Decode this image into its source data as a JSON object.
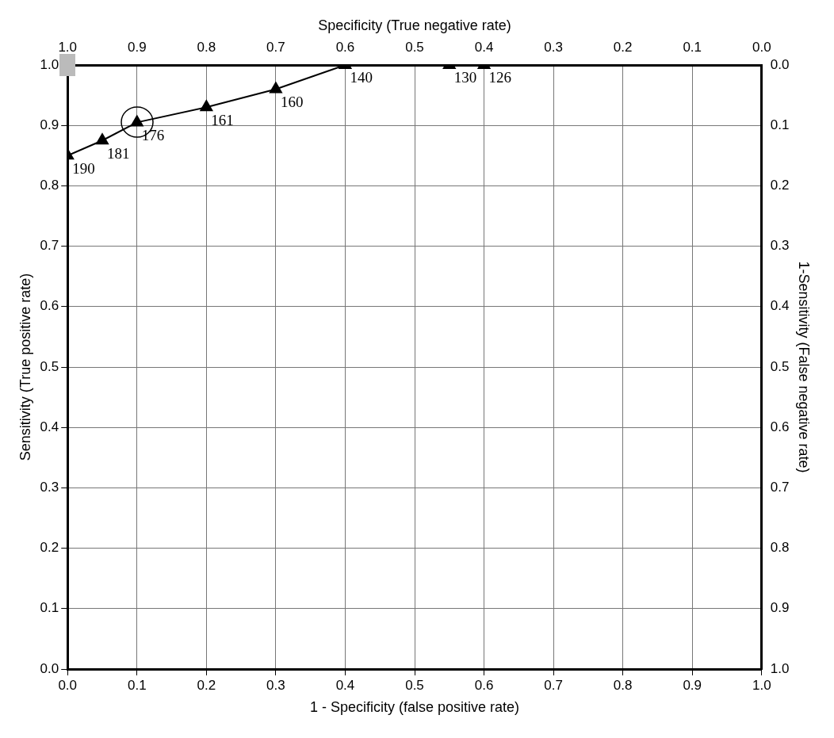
{
  "chart_data": {
    "type": "line",
    "xlabel": "1 - Specificity (false positive rate)",
    "ylabel": "Sensitivity (True positive rate)",
    "x2label": "Specificity (True negative rate)",
    "y2label": "1-Sensitivity (False negative rate)",
    "x": [
      0.0,
      0.05,
      0.1,
      0.2,
      0.3,
      0.4,
      0.55,
      0.6
    ],
    "series": [
      {
        "color": "#000000",
        "values": [
          0.85,
          0.875,
          0.905,
          0.93,
          0.96,
          1.0,
          1.0,
          1.0
        ]
      }
    ],
    "annotations": [
      {
        "text": "190",
        "x": 0.0,
        "y": 0.85
      },
      {
        "text": "181",
        "x": 0.05,
        "y": 0.875
      },
      {
        "text": "176",
        "x": 0.1,
        "y": 0.905
      },
      {
        "text": "161",
        "x": 0.2,
        "y": 0.93
      },
      {
        "text": "160",
        "x": 0.3,
        "y": 0.96
      },
      {
        "text": "140",
        "x": 0.4,
        "y": 1.0
      },
      {
        "text": "130",
        "x": 0.55,
        "y": 1.0
      },
      {
        "text": "126",
        "x": 0.6,
        "y": 1.0
      }
    ],
    "xlim": [
      0,
      1
    ],
    "xticks": [
      {
        "value": 0,
        "label": "0.0"
      },
      0.1,
      0.2,
      0.3,
      0.4,
      0.5,
      0.6,
      0.7,
      0.8,
      0.9,
      {
        "value": 1,
        "label": "1.0"
      }
    ],
    "ylim": [
      0,
      1
    ],
    "yticks": [
      {
        "value": 0,
        "label": "0.0"
      },
      0.1,
      0.2,
      0.3,
      0.4,
      0.5,
      0.6,
      0.7,
      0.8,
      0.9,
      {
        "value": 1,
        "label": "1.0"
      }
    ],
    "x2lim": [
      1,
      0
    ],
    "x2ticks": [
      {
        "value": 1,
        "label": "1.0"
      },
      0.9,
      0.8,
      0.7,
      0.6,
      0.5,
      0.4,
      0.3,
      0.2,
      0.1,
      {
        "value": 0,
        "label": "0.0"
      }
    ],
    "y2lim": [
      1,
      0
    ],
    "y2ticks": [
      {
        "value": 0,
        "label": "0.0"
      },
      0.1,
      0.2,
      0.3,
      0.4,
      0.5,
      0.6,
      0.7,
      0.8,
      0.9,
      {
        "value": 1,
        "label": "1.0"
      }
    ],
    "grid": true,
    "legend": false,
    "marker": "triangle",
    "line_style": "solid"
  }
}
